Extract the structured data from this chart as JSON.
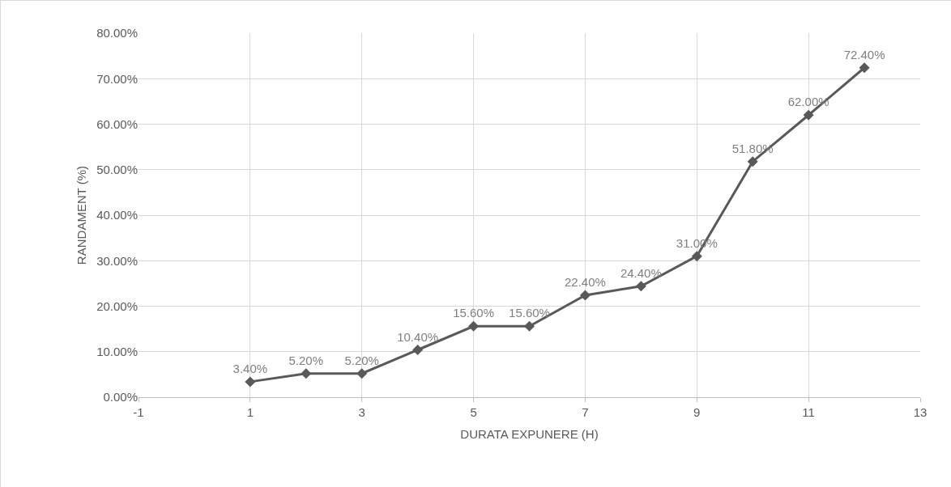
{
  "chart_data": {
    "type": "line",
    "xlabel": "DURATA EXPUNERE (H)",
    "ylabel": "RANDAMENT (%)",
    "x": [
      1,
      2,
      3,
      4,
      5,
      6,
      7,
      8,
      9,
      10,
      11,
      12
    ],
    "series": [
      {
        "color": "#595959",
        "values": [
          3.4,
          5.2,
          5.2,
          10.4,
          15.6,
          15.6,
          22.4,
          24.4,
          31.0,
          51.8,
          62.0,
          72.4
        ],
        "value_labels": [
          "3.40%",
          "5.20%",
          "5.20%",
          "10.40%",
          "15.60%",
          "15.60%",
          "22.40%",
          "24.40%",
          "31.00%",
          "51.80%",
          "62.00%",
          "72.40%"
        ]
      }
    ],
    "xlim": [
      -1,
      13
    ],
    "xticks": [
      -1,
      1,
      3,
      5,
      7,
      9,
      11,
      13
    ],
    "ylim": [
      0,
      80
    ],
    "yticks": [
      {
        "value": 0,
        "label": "0.00%"
      },
      {
        "value": 10,
        "label": "10.00%"
      },
      {
        "value": 20,
        "label": "20.00%"
      },
      {
        "value": 30,
        "label": "30.00%"
      },
      {
        "value": 40,
        "label": "40.00%"
      },
      {
        "value": 50,
        "label": "50.00%"
      },
      {
        "value": 60,
        "label": "60.00%"
      },
      {
        "value": 70,
        "label": "70.00%"
      },
      {
        "value": 80,
        "label": "80.00%"
      }
    ],
    "grid": true,
    "marker": "diamond",
    "line_style": "solid"
  }
}
